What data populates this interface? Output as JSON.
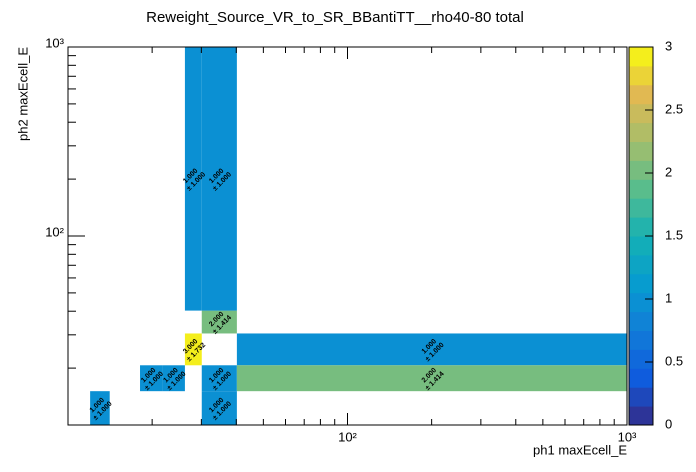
{
  "chart_data": {
    "type": "heatmap",
    "title": "Reweight_Source_VR_to_SR_BBantiTT__rho40-80 total",
    "xlabel": "ph1 maxEcell_E",
    "ylabel": "ph2 maxEcell_E",
    "xscale": "log",
    "yscale": "log",
    "xlim": [
      10,
      1000
    ],
    "ylim": [
      10,
      1000
    ],
    "xticks": [
      {
        "value": 100,
        "label": "10²"
      },
      {
        "value": 1000,
        "label": "10³"
      }
    ],
    "yticks": [
      {
        "value": 100,
        "label": "10²"
      },
      {
        "value": 1000,
        "label": "10³"
      }
    ],
    "xminorticks": [
      20,
      30,
      40,
      50,
      60,
      70,
      80,
      90,
      200,
      300,
      400,
      500,
      600,
      700,
      800,
      900
    ],
    "yminorticks": [
      20,
      30,
      40,
      50,
      60,
      70,
      80,
      90,
      200,
      300,
      400,
      500,
      600,
      700,
      800,
      900
    ],
    "zlim": [
      0,
      3
    ],
    "zticks": [
      0,
      0.5,
      1,
      1.5,
      2,
      2.5,
      3
    ],
    "colormap": "bird",
    "cells": [
      {
        "x": [
          12,
          14.1
        ],
        "y": [
          10,
          15.1
        ],
        "value": 1,
        "value_label": "1.000",
        "error": 1,
        "error_label": "± 1.000"
      },
      {
        "x": [
          18.1,
          21.8
        ],
        "y": [
          15.1,
          20.7
        ],
        "value": 1,
        "value_label": "1.000",
        "error": 1,
        "error_label": "± 1.000"
      },
      {
        "x": [
          21.8,
          26.2
        ],
        "y": [
          15.1,
          20.7
        ],
        "value": 1,
        "value_label": "1.000",
        "error": 1,
        "error_label": "± 1.000"
      },
      {
        "x": [
          26.2,
          30.1
        ],
        "y": [
          20.7,
          30.5
        ],
        "value": 3,
        "value_label": "3.000",
        "error": 1.732,
        "error_label": "± 1.732"
      },
      {
        "x": [
          30.1,
          40.2
        ],
        "y": [
          30.5,
          40.3
        ],
        "value": 2,
        "value_label": "2.000",
        "error": 1.414,
        "error_label": "± 1.414"
      },
      {
        "x": [
          26.2,
          30.1
        ],
        "y": [
          40.3,
          1000
        ],
        "value": 1,
        "value_label": "1.000",
        "error": 1,
        "error_label": "± 1.000"
      },
      {
        "x": [
          30.1,
          40.2
        ],
        "y": [
          40.3,
          1000
        ],
        "value": 1,
        "value_label": "1.000",
        "error": 1,
        "error_label": "± 1.000"
      },
      {
        "x": [
          30.1,
          40.2
        ],
        "y": [
          15.1,
          20.7
        ],
        "value": 1,
        "value_label": "1.000",
        "error": 1,
        "error_label": "± 1.000"
      },
      {
        "x": [
          30.1,
          40.2
        ],
        "y": [
          10,
          15.1
        ],
        "value": 1,
        "value_label": "1.000",
        "error": 1,
        "error_label": "± 1.000"
      },
      {
        "x": [
          40.2,
          1000
        ],
        "y": [
          20.7,
          30.5
        ],
        "value": 1,
        "value_label": "1.000",
        "error": 1,
        "error_label": "± 1.000"
      },
      {
        "x": [
          40.2,
          1000
        ],
        "y": [
          15.1,
          20.7
        ],
        "value": 2,
        "value_label": "2.000",
        "error": 1.414,
        "error_label": "± 1.414"
      }
    ]
  }
}
